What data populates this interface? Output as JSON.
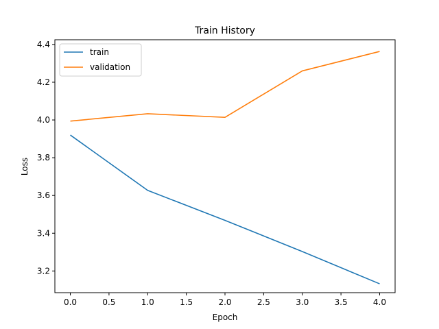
{
  "chart_data": {
    "type": "line",
    "title": "Train History",
    "xlabel": "Epoch",
    "ylabel": "Loss",
    "x": [
      0,
      1,
      2,
      3,
      4
    ],
    "xlim": [
      -0.2,
      4.2
    ],
    "ylim": [
      3.085,
      4.425
    ],
    "xticks": [
      0.0,
      0.5,
      1.0,
      1.5,
      2.0,
      2.5,
      3.0,
      3.5,
      4.0
    ],
    "xtick_labels": [
      "0.0",
      "0.5",
      "1.0",
      "1.5",
      "2.0",
      "2.5",
      "3.0",
      "3.5",
      "4.0"
    ],
    "yticks": [
      3.2,
      3.4,
      3.6,
      3.8,
      4.0,
      4.2,
      4.4
    ],
    "ytick_labels": [
      "3.2",
      "3.4",
      "3.6",
      "3.8",
      "4.0",
      "4.2",
      "4.4"
    ],
    "grid": false,
    "legend_position": "upper-left",
    "series": [
      {
        "name": "train",
        "color": "#1f77b4",
        "values": [
          3.92,
          3.627,
          3.468,
          3.303,
          3.132
        ]
      },
      {
        "name": "validation",
        "color": "#ff7f0e",
        "values": [
          3.994,
          4.033,
          4.014,
          4.26,
          4.363
        ]
      }
    ]
  }
}
